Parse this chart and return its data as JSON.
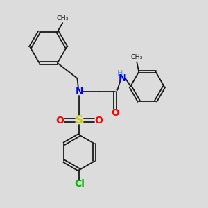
{
  "background_color": "#dcdcdc",
  "figsize": [
    3.0,
    3.0
  ],
  "dpi": 100,
  "bond_color": "#1a1a1a",
  "bond_lw": 1.3,
  "N_color": "#0000ff",
  "NH_color": "#6699cc",
  "S_color": "#cccc00",
  "O_color": "#ff0000",
  "Cl_color": "#00bb00",
  "xlim": [
    0,
    10
  ],
  "ylim": [
    0,
    10
  ]
}
